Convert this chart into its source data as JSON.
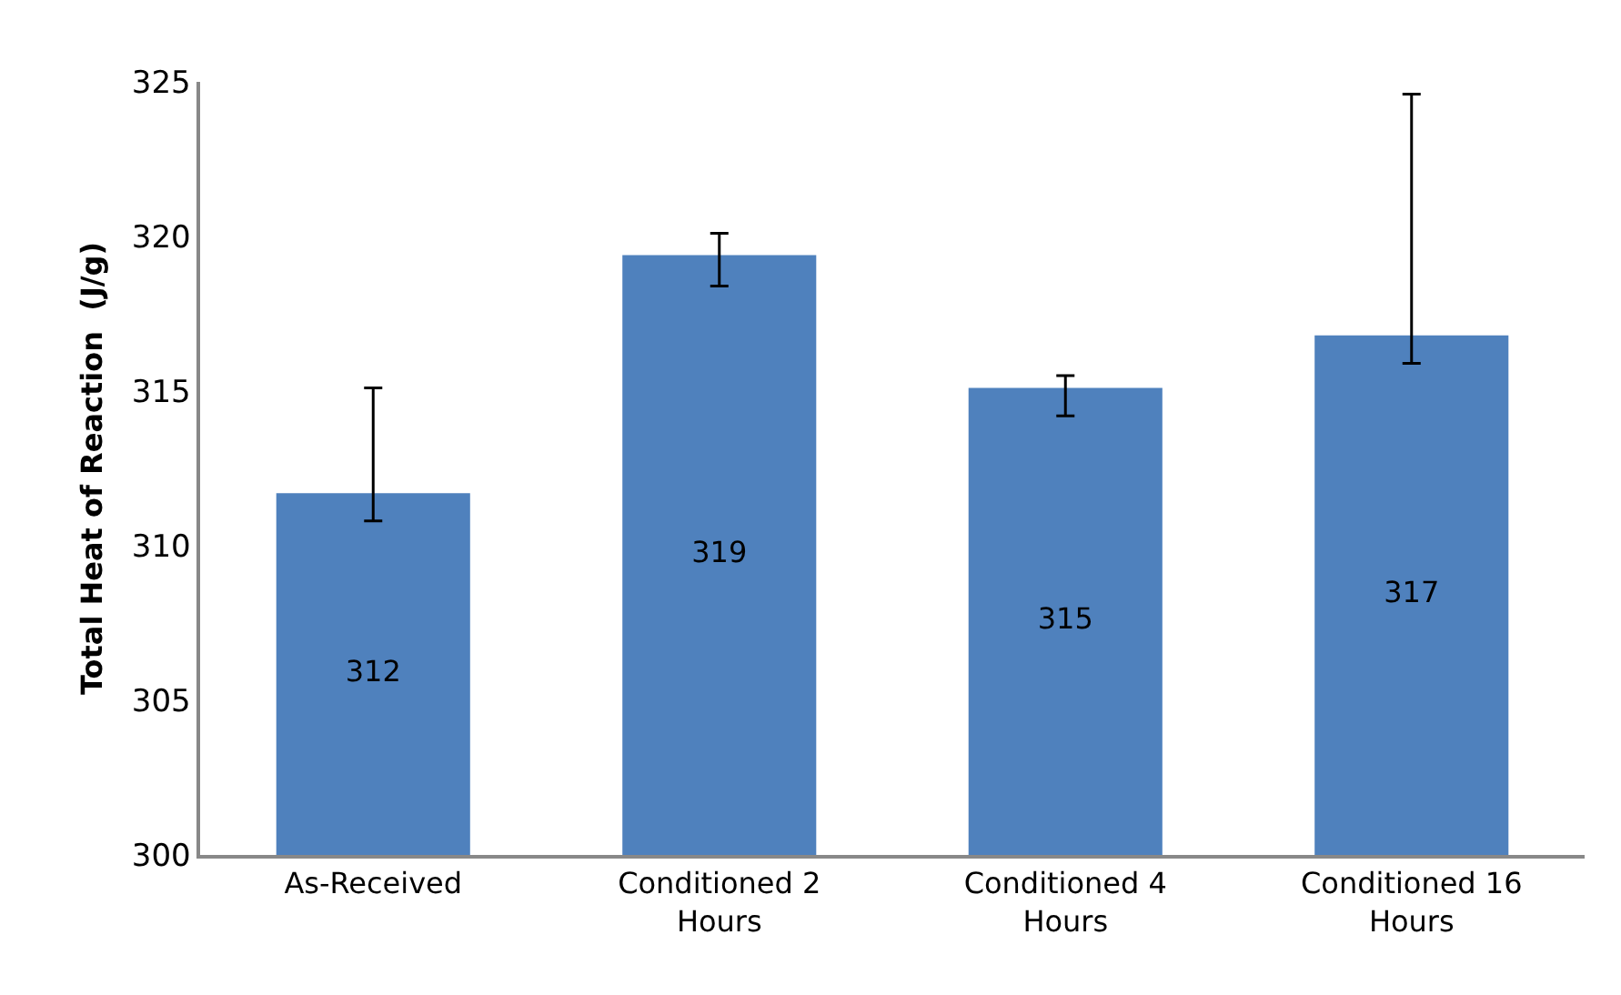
{
  "chart_data": {
    "type": "bar",
    "ylabel": "Total Heat of Reaction  (J/g)",
    "categories": [
      "As-Received",
      "Conditioned 2 Hours",
      "Conditioned 4 Hours",
      "Conditioned 16 Hours"
    ],
    "values": [
      311.7,
      319.4,
      315.1,
      316.8
    ],
    "errors": [
      [
        310.8,
        315.1
      ],
      [
        318.4,
        320.1
      ],
      [
        314.2,
        315.5
      ],
      [
        315.9,
        324.6
      ]
    ],
    "value_labels": [
      "312",
      "319",
      "315",
      "317"
    ],
    "color": "#4f81bd",
    "ylim": [
      300,
      325
    ],
    "yticks": [
      300,
      305,
      310,
      315,
      320,
      325
    ],
    "grid": false
  }
}
